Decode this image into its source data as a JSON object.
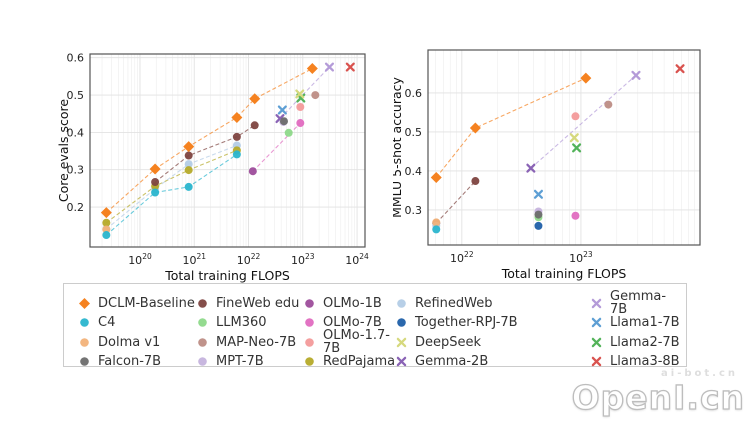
{
  "watermark": {
    "small_text": "ai-bot.cn",
    "big_text": "OpenI.cn"
  },
  "legend": {
    "entries": [
      {
        "label": "DCLM-Baseline",
        "marker": "diamond",
        "color": "#f58220"
      },
      {
        "label": "C4",
        "marker": "circle",
        "color": "#2ab5cd"
      },
      {
        "label": "Dolma v1",
        "marker": "circle",
        "color": "#f2b279"
      },
      {
        "label": "Falcon-7B",
        "marker": "circle",
        "color": "#6d6d6d"
      },
      {
        "label": "FineWeb edu",
        "marker": "circle",
        "color": "#7e4540"
      },
      {
        "label": "LLM360",
        "marker": "circle",
        "color": "#8ed98a"
      },
      {
        "label": "MAP-Neo-7B",
        "marker": "circle",
        "color": "#bd8d85"
      },
      {
        "label": "MPT-7B",
        "marker": "circle",
        "color": "#c5b3dd"
      },
      {
        "label": "OLMo-1B",
        "marker": "circle",
        "color": "#9d4d9b"
      },
      {
        "label": "OLMo-7B",
        "marker": "circle",
        "color": "#e06cc0"
      },
      {
        "label": "OLMo-1.7-7B",
        "marker": "circle",
        "color": "#f39a9a"
      },
      {
        "label": "RedPajama",
        "marker": "circle",
        "color": "#b5aa29"
      },
      {
        "label": "RefinedWeb",
        "marker": "circle",
        "color": "#b3cce6"
      },
      {
        "label": "Together-RPJ-7B",
        "marker": "circle",
        "color": "#1f5fa8"
      },
      {
        "label": "DeepSeek",
        "marker": "x",
        "color": "#d6d97e"
      },
      {
        "label": "Gemma-2B",
        "marker": "x",
        "color": "#8a63b5"
      },
      {
        "label": "Gemma-7B",
        "marker": "x",
        "color": "#b49bd8"
      },
      {
        "label": "Llama1-7B",
        "marker": "x",
        "color": "#5e9fd4"
      },
      {
        "label": "Llama2-7B",
        "marker": "x",
        "color": "#53b35a"
      },
      {
        "label": "Llama3-8B",
        "marker": "x",
        "color": "#d9534f"
      }
    ]
  },
  "chart_data": [
    {
      "type": "scatter",
      "title": "",
      "xlabel": "Total training FLOPS",
      "ylabel": "Core evals score",
      "xscale": "log",
      "xlim": [
        1.2e+19,
        1.4e+24
      ],
      "ylim": [
        0.093,
        0.61
      ],
      "yticks": [
        0.2,
        0.3,
        0.4,
        0.5,
        0.6
      ],
      "xticks": [
        1e+20,
        1e+21,
        1e+22,
        1e+23,
        1e+24
      ],
      "grid": true,
      "series": [
        {
          "name": "DCLM-Baseline",
          "line": true,
          "points": [
            [
              2.4e+19,
              0.185
            ],
            [
              1.9e+20,
              0.302
            ],
            [
              7.9e+20,
              0.362
            ],
            [
              6.1e+21,
              0.44
            ],
            [
              1.3e+22,
              0.49
            ],
            [
              1.5e+23,
              0.571
            ]
          ]
        },
        {
          "name": "C4",
          "line": true,
          "points": [
            [
              2.4e+19,
              0.125
            ],
            [
              1.9e+20,
              0.239
            ],
            [
              7.9e+20,
              0.254
            ],
            [
              6.1e+21,
              0.341
            ]
          ]
        },
        {
          "name": "Dolma v1",
          "line": false,
          "points": [
            [
              2.4e+19,
              0.14
            ]
          ]
        },
        {
          "name": "Falcon-7B",
          "line": false,
          "points": [
            [
              4.5e+22,
              0.43
            ]
          ]
        },
        {
          "name": "FineWeb edu",
          "line": true,
          "points": [
            [
              1.9e+20,
              0.267
            ],
            [
              7.9e+20,
              0.338
            ],
            [
              6.1e+21,
              0.388
            ],
            [
              1.3e+22,
              0.419
            ]
          ]
        },
        {
          "name": "LLM360",
          "line": false,
          "points": [
            [
              5.5e+22,
              0.399
            ]
          ]
        },
        {
          "name": "MAP-Neo-7B",
          "line": false,
          "points": [
            [
              1.7e+23,
              0.5
            ]
          ]
        },
        {
          "name": "MPT-7B",
          "line": false,
          "points": [
            [
              4.4e+22,
              0.428
            ]
          ]
        },
        {
          "name": "OLMo-1B",
          "line": false,
          "points": [
            [
              1.2e+22,
              0.296
            ]
          ]
        },
        {
          "name": "OLMo-7B",
          "line": false,
          "points": [
            [
              9e+22,
              0.425
            ]
          ]
        },
        {
          "name": "OLMo-1.7-7B",
          "line": false,
          "points": [
            [
              9e+22,
              0.468
            ]
          ]
        },
        {
          "name": "RedPajama",
          "line": true,
          "points": [
            [
              2.4e+19,
              0.158
            ],
            [
              1.9e+20,
              0.256
            ],
            [
              7.9e+20,
              0.299
            ],
            [
              6.1e+21,
              0.352
            ]
          ]
        },
        {
          "name": "RefinedWeb",
          "line": true,
          "points": [
            [
              2.4e+19,
              0.141
            ],
            [
              1.9e+20,
              0.249
            ],
            [
              7.9e+20,
              0.315
            ],
            [
              6.1e+21,
              0.365
            ]
          ]
        },
        {
          "name": "DeepSeek",
          "line": false,
          "points": [
            [
              8.8e+22,
              0.503
            ]
          ]
        },
        {
          "name": "Gemma-2B",
          "line": false,
          "points": [
            [
              3.8e+22,
              0.437
            ]
          ]
        },
        {
          "name": "Gemma-7B",
          "line": false,
          "points": [
            [
              3.1e+23,
              0.575
            ]
          ]
        },
        {
          "name": "Llama1-7B",
          "line": false,
          "points": [
            [
              4.2e+22,
              0.46
            ]
          ]
        },
        {
          "name": "Llama2-7B",
          "line": false,
          "points": [
            [
              9.2e+22,
              0.492
            ]
          ]
        },
        {
          "name": "Llama3-8B",
          "line": false,
          "points": [
            [
              7.5e+23,
              0.575
            ]
          ]
        }
      ],
      "connectors": [
        {
          "series": "OLMo-7B",
          "points": [
            [
              1.2e+22,
              0.296
            ],
            [
              9e+22,
              0.425
            ]
          ]
        },
        {
          "series": "Gemma-7B",
          "points": [
            [
              3.8e+22,
              0.437
            ],
            [
              3.1e+23,
              0.575
            ]
          ]
        }
      ]
    },
    {
      "type": "scatter",
      "title": "",
      "xlabel": "Total training FLOPS",
      "ylabel": "MMLU 5-shot accuracy",
      "xscale": "log",
      "xlim": [
        5.2e+21,
        1e+24
      ],
      "ylim": [
        0.21,
        0.71
      ],
      "yticks": [
        0.3,
        0.4,
        0.5,
        0.6
      ],
      "xticks": [
        1e+22,
        1e+23
      ],
      "grid": true,
      "series": [
        {
          "name": "DCLM-Baseline",
          "line": true,
          "points": [
            [
              6.1e+21,
              0.383
            ],
            [
              1.3e+22,
              0.51
            ],
            [
              1.1e+23,
              0.638
            ]
          ]
        },
        {
          "name": "C4",
          "line": false,
          "points": [
            [
              6.1e+21,
              0.25
            ]
          ]
        },
        {
          "name": "Dolma v1",
          "line": false,
          "points": [
            [
              6.1e+21,
              0.268
            ]
          ]
        },
        {
          "name": "RefinedWeb",
          "line": false,
          "points": [
            [
              6.1e+21,
              0.259
            ]
          ]
        },
        {
          "name": "FineWeb edu",
          "line": true,
          "points": [
            [
              6.1e+21,
              0.266
            ],
            [
              1.3e+22,
              0.374
            ]
          ]
        },
        {
          "name": "Falcon-7B",
          "line": false,
          "points": [
            [
              4.4e+22,
              0.288
            ]
          ]
        },
        {
          "name": "LLM360",
          "line": false,
          "points": [
            [
              4.4e+22,
              0.281
            ]
          ]
        },
        {
          "name": "MPT-7B",
          "line": false,
          "points": [
            [
              4.4e+22,
              0.296
            ]
          ]
        },
        {
          "name": "Together-RPJ-7B",
          "line": false,
          "points": [
            [
              4.4e+22,
              0.259
            ]
          ]
        },
        {
          "name": "Llama1-7B",
          "line": false,
          "points": [
            [
              4.4e+22,
              0.34
            ]
          ]
        },
        {
          "name": "Gemma-2B",
          "line": false,
          "points": [
            [
              3.8e+22,
              0.407
            ]
          ]
        },
        {
          "name": "OLMo-7B",
          "line": false,
          "points": [
            [
              9e+22,
              0.285
            ]
          ]
        },
        {
          "name": "OLMo-1.7-7B",
          "line": false,
          "points": [
            [
              9e+22,
              0.54
            ]
          ]
        },
        {
          "name": "DeepSeek",
          "line": false,
          "points": [
            [
              8.8e+22,
              0.485
            ]
          ]
        },
        {
          "name": "Llama2-7B",
          "line": false,
          "points": [
            [
              9.2e+22,
              0.459
            ]
          ]
        },
        {
          "name": "MAP-Neo-7B",
          "line": false,
          "points": [
            [
              1.7e+23,
              0.57
            ]
          ]
        },
        {
          "name": "Gemma-7B",
          "line": false,
          "points": [
            [
              2.9e+23,
              0.645
            ]
          ]
        },
        {
          "name": "Llama3-8B",
          "line": false,
          "points": [
            [
              6.8e+23,
              0.662
            ]
          ]
        }
      ],
      "connectors": [
        {
          "series": "Gemma-7B",
          "points": [
            [
              3.8e+22,
              0.407
            ],
            [
              2.9e+23,
              0.645
            ]
          ]
        }
      ]
    }
  ]
}
